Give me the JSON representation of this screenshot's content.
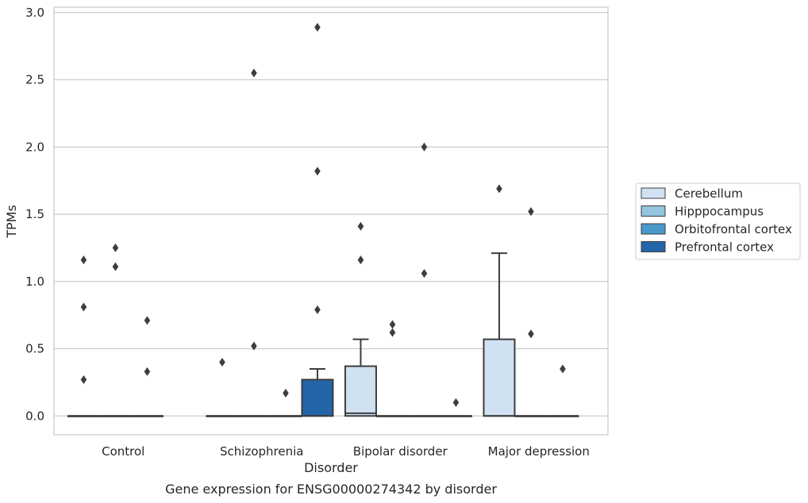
{
  "chart_data": {
    "type": "box",
    "title": "Gene expression for ENSG00000274342 by disorder",
    "xlabel": "Disorder",
    "ylabel": "TPMs",
    "ylim": [
      -0.14,
      3.04
    ],
    "yticks": [
      0.0,
      0.5,
      1.0,
      1.5,
      2.0,
      2.5,
      3.0
    ],
    "ytick_labels": [
      "0.0",
      "0.5",
      "1.0",
      "1.5",
      "2.0",
      "2.5",
      "3.0"
    ],
    "grid": "horizontal",
    "legend_position": "right",
    "categories": [
      "Control",
      "Schizophrenia",
      "Bipolar disorder",
      "Major depression"
    ],
    "series": [
      {
        "name": "Cerebellum",
        "color": "#d0e1f2",
        "boxes": [
          {
            "q1": 0,
            "median": 0,
            "q3": 0,
            "whisker_low": 0,
            "whisker_high": 0,
            "outliers": [
              1.16,
              0.81,
              0.27
            ]
          },
          {
            "q1": 0,
            "median": 0,
            "q3": 0,
            "whisker_low": 0,
            "whisker_high": 0,
            "outliers": [
              0.4
            ]
          },
          {
            "q1": 0,
            "median": 0.02,
            "q3": 0.37,
            "whisker_low": 0,
            "whisker_high": 0.57,
            "outliers": [
              1.41,
              1.16
            ]
          },
          {
            "q1": 0,
            "median": 0,
            "q3": 0.57,
            "whisker_low": 0,
            "whisker_high": 1.21,
            "outliers": [
              1.69
            ]
          }
        ]
      },
      {
        "name": "Hipppocampus",
        "color": "#94c4df",
        "boxes": [
          {
            "q1": 0,
            "median": 0,
            "q3": 0,
            "whisker_low": 0,
            "whisker_high": 0,
            "outliers": [
              1.25,
              1.11
            ]
          },
          {
            "q1": 0,
            "median": 0,
            "q3": 0,
            "whisker_low": 0,
            "whisker_high": 0,
            "outliers": [
              2.55,
              0.52
            ]
          },
          {
            "q1": 0,
            "median": 0,
            "q3": 0,
            "whisker_low": 0,
            "whisker_high": 0,
            "outliers": [
              0.68,
              0.62
            ]
          },
          {
            "q1": 0,
            "median": 0,
            "q3": 0,
            "whisker_low": 0,
            "whisker_high": 0,
            "outliers": [
              1.52,
              0.61
            ]
          }
        ]
      },
      {
        "name": "Orbitofrontal cortex",
        "color": "#4a98c9",
        "boxes": [
          {
            "q1": 0,
            "median": 0,
            "q3": 0,
            "whisker_low": 0,
            "whisker_high": 0,
            "outliers": [
              0.71,
              0.33
            ]
          },
          {
            "q1": 0,
            "median": 0,
            "q3": 0,
            "whisker_low": 0,
            "whisker_high": 0,
            "outliers": [
              0.17
            ]
          },
          {
            "q1": 0,
            "median": 0,
            "q3": 0,
            "whisker_low": 0,
            "whisker_high": 0,
            "outliers": [
              2.0,
              1.06
            ]
          },
          {
            "q1": 0,
            "median": 0,
            "q3": 0,
            "whisker_low": 0,
            "whisker_high": 0,
            "outliers": [
              0.35
            ]
          }
        ]
      },
      {
        "name": "Prefrontal cortex",
        "color": "#2464a8",
        "boxes": [
          null,
          {
            "q1": 0,
            "median": 0,
            "q3": 0.27,
            "whisker_low": 0,
            "whisker_high": 0.35,
            "outliers": [
              2.89,
              1.82,
              0.79
            ]
          },
          {
            "q1": 0,
            "median": 0,
            "q3": 0,
            "whisker_low": 0,
            "whisker_high": 0,
            "outliers": [
              0.1
            ]
          },
          null
        ]
      }
    ]
  }
}
